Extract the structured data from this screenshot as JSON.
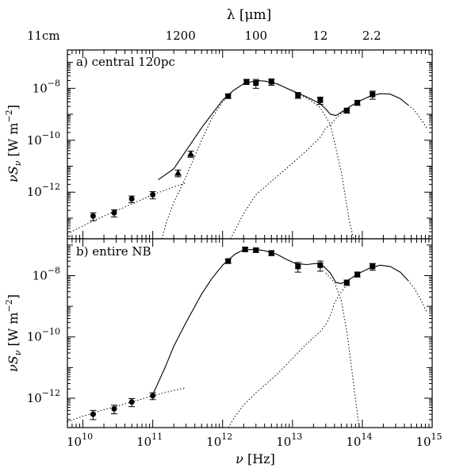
{
  "top_axis": {
    "label_symbol": "λ",
    "label_unit": "[μm]",
    "tick_labels": [
      {
        "label": "11cm",
        "lambda_um": 110000
      },
      {
        "label": "1200",
        "lambda_um": 1200
      },
      {
        "label": "100",
        "lambda_um": 100
      },
      {
        "label": "12",
        "lambda_um": 12
      },
      {
        "label": "2.2",
        "lambda_um": 2.2
      }
    ]
  },
  "x_axis": {
    "label_symbol": "ν",
    "label_unit": "[Hz]",
    "tick_labels": [
      {
        "label": "10",
        "exp": "10",
        "log": 10
      },
      {
        "label": "10",
        "exp": "11",
        "log": 11
      },
      {
        "label": "10",
        "exp": "12",
        "log": 12
      },
      {
        "label": "10",
        "exp": "13",
        "log": 13
      },
      {
        "label": "10",
        "exp": "14",
        "log": 14
      },
      {
        "label": "10",
        "exp": "15",
        "log": 15
      }
    ]
  },
  "y_axis": {
    "label_symbol": "ν",
    "label_symbol2": "S",
    "label_sub": "ν",
    "label_unit_pre": "[W m",
    "label_unit_exp": "−2",
    "label_unit_post": "]"
  },
  "chart_data": [
    {
      "type": "scatter",
      "panel": "a",
      "annotation": "a) central 120pc",
      "xscale": "log",
      "yscale": "log",
      "xlim": [
        6000000000.0,
        1000000000000000.0
      ],
      "ylim": [
        1.6e-14,
        3e-07
      ],
      "ytick_labels": [
        {
          "label": "10",
          "exp": "−8",
          "value": 1e-08
        },
        {
          "label": "10",
          "exp": "−10",
          "value": 1e-10
        },
        {
          "label": "10",
          "exp": "−12",
          "value": 1e-12
        }
      ],
      "points": [
        {
          "x": 14000000000.0,
          "y": 1.2e-13,
          "err": 4e-14,
          "marker": "circle"
        },
        {
          "x": 28000000000.0,
          "y": 1.6e-13,
          "err": 5e-14,
          "marker": "circle"
        },
        {
          "x": 50000000000.0,
          "y": 5.5e-13,
          "err": 1.6e-13,
          "marker": "circle"
        },
        {
          "x": 100000000000.0,
          "y": 8e-13,
          "err": 2.5e-13,
          "marker": "circle"
        },
        {
          "x": 230000000000.0,
          "y": 5.5e-12,
          "err": 1.6e-12,
          "marker": "triangle"
        },
        {
          "x": 350000000000.0,
          "y": 3e-11,
          "err": 8e-12,
          "marker": "triangle"
        },
        {
          "x": 1200000000000.0,
          "y": 5e-09,
          "err": 8e-10,
          "marker": "square"
        },
        {
          "x": 2200000000000.0,
          "y": 1.8e-08,
          "err": 4e-09,
          "marker": "square"
        },
        {
          "x": 3000000000000.0,
          "y": 1.6e-08,
          "err": 6e-09,
          "marker": "square"
        },
        {
          "x": 5000000000000.0,
          "y": 1.8e-08,
          "err": 5e-09,
          "marker": "square"
        },
        {
          "x": 12000000000000.0,
          "y": 5.5e-09,
          "err": 1.4e-09,
          "marker": "square"
        },
        {
          "x": 25000000000000.0,
          "y": 3.5e-09,
          "err": 1.1e-09,
          "marker": "square"
        },
        {
          "x": 60000000000000.0,
          "y": 1.4e-09,
          "err": 3e-10,
          "marker": "square"
        },
        {
          "x": 85000000000000.0,
          "y": 2.8e-09,
          "err": 6e-10,
          "marker": "square"
        },
        {
          "x": 140000000000000.0,
          "y": 5.8e-09,
          "err": 2e-09,
          "marker": "square"
        }
      ],
      "total_model": [
        [
          120000000000.0,
          3e-12
        ],
        [
          200000000000.0,
          8e-12
        ],
        [
          300000000000.0,
          4e-11
        ],
        [
          500000000000.0,
          3e-10
        ],
        [
          700000000000.0,
          1e-09
        ],
        [
          1000000000000.0,
          3.5e-09
        ],
        [
          1400000000000.0,
          8e-09
        ],
        [
          2000000000000.0,
          1.5e-08
        ],
        [
          3000000000000.0,
          2e-08
        ],
        [
          4000000000000.0,
          1.9e-08
        ],
        [
          6000000000000.0,
          1.5e-08
        ],
        [
          9000000000000.0,
          9e-09
        ],
        [
          13000000000000.0,
          6e-09
        ],
        [
          18000000000000.0,
          4e-09
        ],
        [
          25000000000000.0,
          2.5e-09
        ],
        [
          30000000000000.0,
          1.6e-09
        ],
        [
          35000000000000.0,
          1e-09
        ],
        [
          42000000000000.0,
          9e-10
        ],
        [
          50000000000000.0,
          1.2e-09
        ],
        [
          65000000000000.0,
          1.9e-09
        ],
        [
          90000000000000.0,
          3.2e-09
        ],
        [
          130000000000000.0,
          5e-09
        ],
        [
          180000000000000.0,
          6.2e-09
        ],
        [
          250000000000000.0,
          6e-09
        ],
        [
          350000000000000.0,
          4e-09
        ],
        [
          450000000000000.0,
          2.3e-09
        ]
      ],
      "total_model_tail": [
        [
          450000000000000.0,
          2.3e-09
        ],
        [
          550000000000000.0,
          1.5e-09
        ],
        [
          700000000000000.0,
          6e-10
        ],
        [
          850000000000000.0,
          2.8e-10
        ]
      ],
      "components": [
        [
          [
            6000000000.0,
            2.5e-14
          ],
          [
            10000000000.0,
            5e-14
          ],
          [
            20000000000.0,
            1.2e-13
          ],
          [
            50000000000.0,
            3.5e-13
          ],
          [
            100000000000.0,
            8e-13
          ],
          [
            200000000000.0,
            1.6e-12
          ],
          [
            300000000000.0,
            2.3e-12
          ]
        ],
        [
          [
            135000000000.0,
            1.6e-14
          ],
          [
            160000000000.0,
            8e-14
          ],
          [
            200000000000.0,
            4e-13
          ],
          [
            300000000000.0,
            4e-12
          ],
          [
            500000000000.0,
            1e-10
          ],
          [
            700000000000.0,
            7e-10
          ],
          [
            1000000000000.0,
            3e-09
          ],
          [
            1400000000000.0,
            8e-09
          ],
          [
            2000000000000.0,
            1.5e-08
          ],
          [
            3000000000000.0,
            2e-08
          ],
          [
            4000000000000.0,
            1.9e-08
          ],
          [
            6000000000000.0,
            1.5e-08
          ],
          [
            9000000000000.0,
            9e-09
          ],
          [
            13000000000000.0,
            5.5e-09
          ],
          [
            18000000000000.0,
            3.5e-09
          ],
          [
            25000000000000.0,
            1.8e-09
          ],
          [
            35000000000000.0,
            4e-10
          ],
          [
            50000000000000.0,
            6e-12
          ],
          [
            65000000000000.0,
            8e-14
          ],
          [
            75000000000000.0,
            1.6e-14
          ]
        ],
        [
          [
            1300000000000.0,
            1.6e-14
          ],
          [
            2000000000000.0,
            1.5e-13
          ],
          [
            3000000000000.0,
            8e-13
          ],
          [
            6000000000000.0,
            4e-12
          ],
          [
            10000000000000.0,
            1.3e-11
          ],
          [
            16000000000000.0,
            4e-11
          ],
          [
            25000000000000.0,
            1.3e-10
          ],
          [
            30000000000000.0,
            3e-10
          ],
          [
            35000000000000.0,
            4e-10
          ],
          [
            40000000000000.0,
            6e-10
          ],
          [
            50000000000000.0,
            1.1e-09
          ],
          [
            65000000000000.0,
            1.8e-09
          ]
        ]
      ]
    },
    {
      "type": "scatter",
      "panel": "b",
      "annotation": "b) entire NB",
      "xscale": "log",
      "yscale": "log",
      "xlim": [
        6000000000.0,
        1000000000000000.0
      ],
      "ylim": [
        1.1e-13,
        1.6e-07
      ],
      "ytick_labels": [
        {
          "label": "10",
          "exp": "−8",
          "value": 1e-08
        },
        {
          "label": "10",
          "exp": "−10",
          "value": 1e-10
        },
        {
          "label": "10",
          "exp": "−12",
          "value": 1e-12
        }
      ],
      "points": [
        {
          "x": 14000000000.0,
          "y": 3e-13,
          "err": 1e-13,
          "marker": "circle"
        },
        {
          "x": 28000000000.0,
          "y": 4.5e-13,
          "err": 1.4e-13,
          "marker": "circle"
        },
        {
          "x": 50000000000.0,
          "y": 7.5e-13,
          "err": 2.2e-13,
          "marker": "circle"
        },
        {
          "x": 100000000000.0,
          "y": 1.2e-12,
          "err": 3e-13,
          "marker": "circle"
        },
        {
          "x": 1200000000000.0,
          "y": 3e-08,
          "err": 5e-09,
          "marker": "square"
        },
        {
          "x": 2100000000000.0,
          "y": 7.2e-08,
          "err": 1e-08,
          "marker": "square"
        },
        {
          "x": 3000000000000.0,
          "y": 6.8e-08,
          "err": 1e-08,
          "marker": "square"
        },
        {
          "x": 5000000000000.0,
          "y": 5.5e-08,
          "err": 1e-08,
          "marker": "square"
        },
        {
          "x": 12000000000000.0,
          "y": 2e-08,
          "err": 7e-09,
          "marker": "square"
        },
        {
          "x": 25000000000000.0,
          "y": 2.2e-08,
          "err": 8e-09,
          "marker": "square"
        },
        {
          "x": 60000000000000.0,
          "y": 6e-09,
          "err": 1.2e-09,
          "marker": "square"
        },
        {
          "x": 85000000000000.0,
          "y": 1.1e-08,
          "err": 2e-09,
          "marker": "square"
        },
        {
          "x": 140000000000000.0,
          "y": 2e-08,
          "err": 5e-09,
          "marker": "square"
        }
      ],
      "total_model": [
        [
          100000000000.0,
          1.3e-12
        ],
        [
          150000000000.0,
          1e-11
        ],
        [
          200000000000.0,
          5e-11
        ],
        [
          300000000000.0,
          3e-10
        ],
        [
          500000000000.0,
          2.5e-09
        ],
        [
          700000000000.0,
          8e-09
        ],
        [
          1000000000000.0,
          2.2e-08
        ],
        [
          1500000000000.0,
          5e-08
        ],
        [
          2000000000000.0,
          7e-08
        ],
        [
          3000000000000.0,
          7.2e-08
        ],
        [
          4000000000000.0,
          6.5e-08
        ],
        [
          6000000000000.0,
          5e-08
        ],
        [
          8000000000000.0,
          3.5e-08
        ],
        [
          11000000000000.0,
          2.5e-08
        ],
        [
          16000000000000.0,
          2.3e-08
        ],
        [
          22000000000000.0,
          2.5e-08
        ],
        [
          28000000000000.0,
          2e-08
        ],
        [
          35000000000000.0,
          1.2e-08
        ],
        [
          42000000000000.0,
          6e-09
        ],
        [
          50000000000000.0,
          5.5e-09
        ],
        [
          65000000000000.0,
          7.5e-09
        ],
        [
          90000000000000.0,
          1.2e-08
        ],
        [
          130000000000000.0,
          1.8e-08
        ],
        [
          180000000000000.0,
          2.2e-08
        ],
        [
          250000000000000.0,
          2e-08
        ],
        [
          350000000000000.0,
          1.3e-08
        ],
        [
          450000000000000.0,
          7e-09
        ]
      ],
      "total_model_tail": [
        [
          450000000000000.0,
          7e-09
        ],
        [
          550000000000000.0,
          4e-09
        ],
        [
          700000000000000.0,
          1.5e-09
        ],
        [
          850000000000000.0,
          6e-10
        ]
      ],
      "components": [
        [
          [
            6000000000.0,
            1.7e-13
          ],
          [
            10000000000.0,
            2.6e-13
          ],
          [
            20000000000.0,
            4.2e-13
          ],
          [
            50000000000.0,
            7.5e-13
          ],
          [
            100000000000.0,
            1.2e-12
          ],
          [
            200000000000.0,
            1.8e-12
          ],
          [
            300000000000.0,
            2.2e-12
          ]
        ],
        [
          [
            1200000000000.0,
            1.1e-13
          ],
          [
            1500000000000.0,
            2.5e-13
          ],
          [
            2000000000000.0,
            6e-13
          ],
          [
            3000000000000.0,
            1.5e-12
          ],
          [
            6000000000000.0,
            6e-12
          ],
          [
            10000000000000.0,
            2e-11
          ],
          [
            16000000000000.0,
            6e-11
          ],
          [
            25000000000000.0,
            1.5e-10
          ],
          [
            30000000000000.0,
            2.5e-10
          ],
          [
            35000000000000.0,
            5e-10
          ],
          [
            40000000000000.0,
            1.3e-09
          ],
          [
            50000000000000.0,
            3e-09
          ],
          [
            65000000000000.0,
            6e-09
          ]
        ],
        [
          [
            30000000000000.0,
            1.2e-08
          ],
          [
            40000000000000.0,
            6e-09
          ],
          [
            50000000000000.0,
            1.5e-09
          ],
          [
            60000000000000.0,
            1.5e-10
          ],
          [
            75000000000000.0,
            3e-12
          ],
          [
            90000000000000.0,
            1.1e-13
          ]
        ]
      ]
    }
  ]
}
